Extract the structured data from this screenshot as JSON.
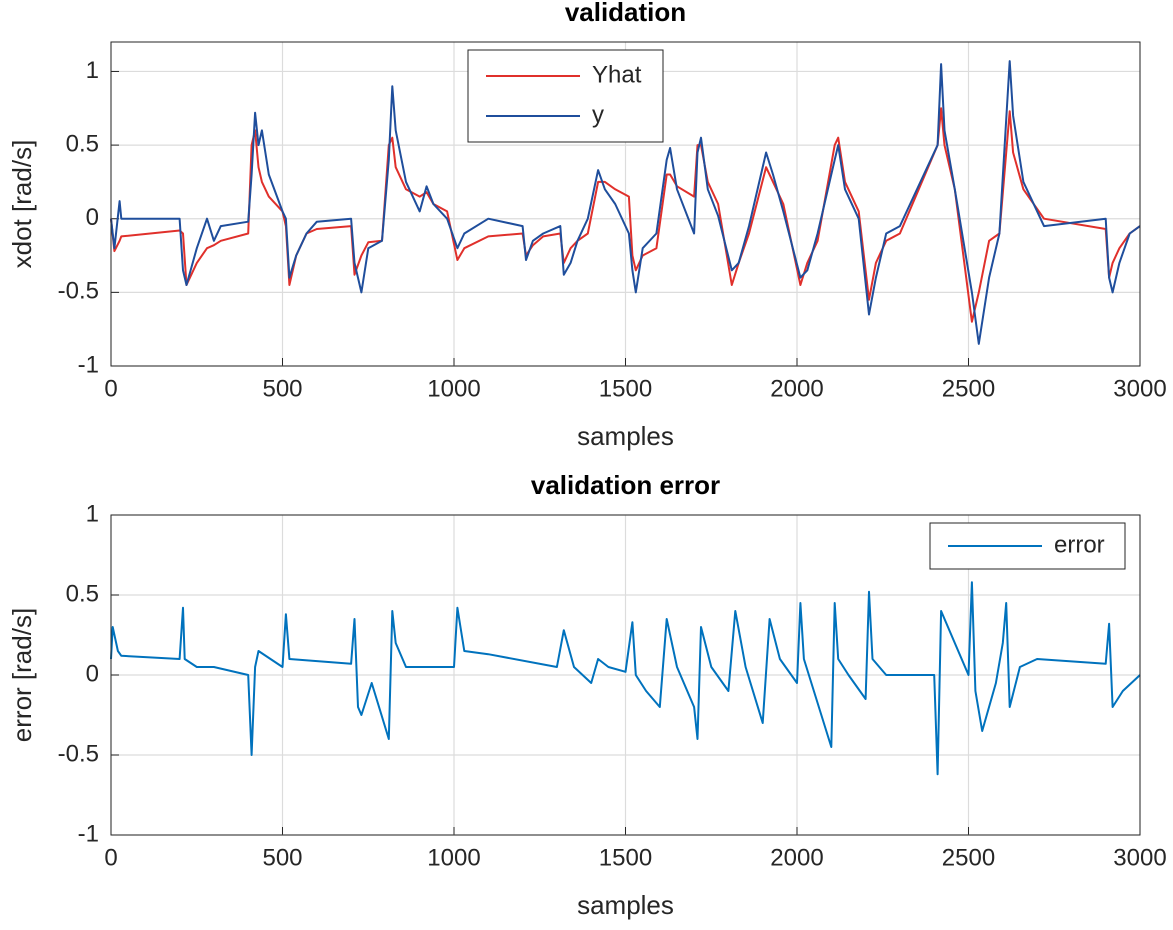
{
  "chart_data": [
    {
      "type": "line",
      "title": "validation",
      "xlabel": "samples",
      "ylabel": "xdot [rad/s]",
      "xlim": [
        0,
        3000
      ],
      "xticks": [
        0,
        500,
        1000,
        1500,
        2000,
        2500,
        3000
      ],
      "ylim": [
        -1,
        1.2
      ],
      "yticks": [
        -1,
        -0.5,
        0,
        0.5,
        1
      ],
      "grid": true,
      "legend": "north",
      "x": [
        0,
        10,
        25,
        30,
        200,
        210,
        220,
        250,
        280,
        300,
        320,
        400,
        410,
        420,
        430,
        440,
        460,
        500,
        510,
        520,
        540,
        570,
        600,
        700,
        710,
        730,
        750,
        790,
        810,
        820,
        830,
        860,
        900,
        920,
        940,
        980,
        1010,
        1030,
        1100,
        1200,
        1210,
        1230,
        1260,
        1310,
        1320,
        1340,
        1360,
        1390,
        1420,
        1440,
        1470,
        1510,
        1520,
        1530,
        1550,
        1590,
        1620,
        1630,
        1650,
        1700,
        1710,
        1720,
        1740,
        1770,
        1810,
        1830,
        1860,
        1910,
        1930,
        1960,
        2010,
        2030,
        2060,
        2110,
        2120,
        2140,
        2180,
        2210,
        2230,
        2260,
        2300,
        2410,
        2420,
        2430,
        2460,
        2510,
        2530,
        2560,
        2590,
        2620,
        2630,
        2660,
        2720,
        2900,
        2910,
        2920,
        2940,
        2970,
        3000
      ],
      "series": [
        {
          "name": "Yhat",
          "color": "#e0302b",
          "values": [
            0,
            -0.22,
            -0.15,
            -0.12,
            -0.08,
            -0.1,
            -0.45,
            -0.3,
            -0.2,
            -0.18,
            -0.15,
            -0.1,
            0.5,
            0.6,
            0.35,
            0.25,
            0.15,
            0.05,
            -0.05,
            -0.45,
            -0.25,
            -0.1,
            -0.07,
            -0.05,
            -0.38,
            -0.25,
            -0.16,
            -0.15,
            0.5,
            0.55,
            0.35,
            0.2,
            0.15,
            0.18,
            0.1,
            0.05,
            -0.28,
            -0.2,
            -0.12,
            -0.1,
            -0.25,
            -0.18,
            -0.12,
            -0.1,
            -0.3,
            -0.2,
            -0.15,
            -0.1,
            0.25,
            0.25,
            0.2,
            0.15,
            -0.25,
            -0.35,
            -0.25,
            -0.2,
            0.3,
            0.3,
            0.22,
            0.15,
            0.5,
            0.5,
            0.25,
            0.1,
            -0.45,
            -0.3,
            -0.1,
            0.35,
            0.25,
            0.1,
            -0.45,
            -0.3,
            -0.15,
            0.5,
            0.55,
            0.25,
            0.05,
            -0.55,
            -0.3,
            -0.15,
            -0.1,
            0.5,
            0.75,
            0.5,
            0.2,
            -0.7,
            -0.5,
            -0.15,
            -0.1,
            0.73,
            0.45,
            0.2,
            0,
            -0.07,
            -0.4,
            -0.3,
            -0.2,
            -0.1,
            -0.05
          ]
        },
        {
          "name": "y",
          "color": "#1f4e9c",
          "values": [
            0,
            -0.2,
            0.12,
            0,
            0,
            -0.35,
            -0.45,
            -0.2,
            0,
            -0.15,
            -0.05,
            -0.02,
            0.3,
            0.72,
            0.5,
            0.6,
            0.3,
            0.05,
            0,
            -0.4,
            -0.25,
            -0.1,
            -0.02,
            0,
            -0.3,
            -0.5,
            -0.2,
            -0.15,
            0.4,
            0.9,
            0.6,
            0.25,
            0.05,
            0.22,
            0.1,
            0,
            -0.2,
            -0.1,
            0,
            -0.05,
            -0.28,
            -0.15,
            -0.1,
            -0.05,
            -0.38,
            -0.3,
            -0.15,
            0,
            0.33,
            0.2,
            0.1,
            -0.1,
            -0.35,
            -0.5,
            -0.2,
            -0.1,
            0.4,
            0.48,
            0.2,
            -0.1,
            0.45,
            0.55,
            0.2,
            0.02,
            -0.35,
            -0.3,
            -0.05,
            0.45,
            0.3,
            0.05,
            -0.4,
            -0.35,
            -0.1,
            0.4,
            0.5,
            0.2,
            0,
            -0.65,
            -0.4,
            -0.1,
            -0.05,
            0.5,
            1.05,
            0.6,
            0.2,
            -0.5,
            -0.85,
            -0.4,
            -0.1,
            1.07,
            0.7,
            0.25,
            -0.05,
            0,
            -0.4,
            -0.5,
            -0.3,
            -0.1,
            -0.05
          ]
        }
      ]
    },
    {
      "type": "line",
      "title": "validation error",
      "xlabel": "samples",
      "ylabel": "error [rad/s]",
      "xlim": [
        0,
        3000
      ],
      "xticks": [
        0,
        500,
        1000,
        1500,
        2000,
        2500,
        3000
      ],
      "ylim": [
        -1,
        1
      ],
      "yticks": [
        -1,
        -0.5,
        0,
        0.5,
        1
      ],
      "grid": true,
      "legend": "northeast",
      "x": [
        0,
        5,
        20,
        30,
        200,
        210,
        215,
        250,
        300,
        400,
        410,
        420,
        430,
        500,
        510,
        520,
        700,
        710,
        720,
        730,
        760,
        810,
        820,
        830,
        860,
        1000,
        1010,
        1030,
        1100,
        1300,
        1320,
        1350,
        1400,
        1420,
        1450,
        1500,
        1520,
        1530,
        1560,
        1600,
        1620,
        1650,
        1700,
        1710,
        1720,
        1750,
        1800,
        1820,
        1850,
        1900,
        1920,
        1950,
        2000,
        2010,
        2020,
        2100,
        2110,
        2120,
        2150,
        2200,
        2210,
        2220,
        2260,
        2400,
        2410,
        2420,
        2500,
        2510,
        2520,
        2540,
        2580,
        2600,
        2610,
        2620,
        2650,
        2700,
        2900,
        2910,
        2920,
        2950,
        3000
      ],
      "series": [
        {
          "name": "error",
          "color": "#0072bd",
          "values": [
            0.1,
            0.3,
            0.15,
            0.12,
            0.1,
            0.42,
            0.1,
            0.05,
            0.05,
            0,
            -0.5,
            0.05,
            0.15,
            0.05,
            0.38,
            0.1,
            0.07,
            0.35,
            -0.2,
            -0.25,
            -0.05,
            -0.4,
            0.4,
            0.2,
            0.05,
            0.05,
            0.42,
            0.15,
            0.13,
            0.05,
            0.28,
            0.05,
            -0.05,
            0.1,
            0.05,
            0.02,
            0.33,
            0,
            -0.1,
            -0.2,
            0.35,
            0.05,
            -0.2,
            -0.4,
            0.3,
            0.05,
            -0.1,
            0.4,
            0.05,
            -0.3,
            0.35,
            0.1,
            -0.05,
            0.45,
            0.1,
            -0.45,
            0.45,
            0.1,
            0,
            -0.15,
            0.52,
            0.1,
            0,
            0,
            -0.62,
            0.4,
            0,
            0.58,
            -0.1,
            -0.35,
            -0.05,
            0.2,
            0.45,
            -0.2,
            0.05,
            0.1,
            0.07,
            0.32,
            -0.2,
            -0.1,
            0
          ]
        }
      ]
    }
  ]
}
